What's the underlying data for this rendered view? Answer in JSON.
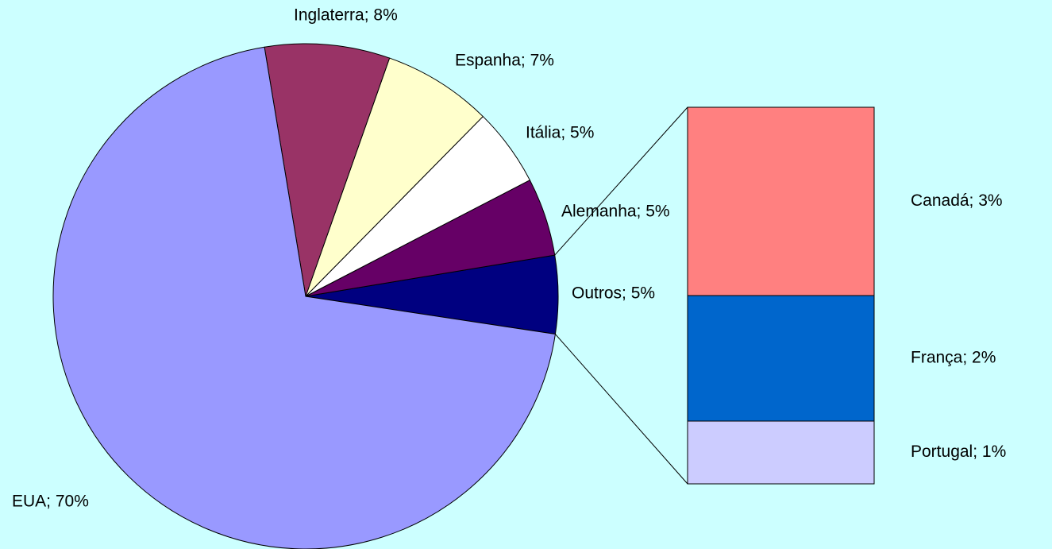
{
  "chart_data": {
    "type": "pie",
    "values": [
      5,
      5,
      5,
      7,
      8,
      70
    ],
    "value_labels": [
      "Outros; 5%",
      "Alemanha; 5%",
      "Itália; 5%",
      "Espanha; 7%",
      "Inglaterra; 8%",
      "EUA; 70%"
    ],
    "colors": [
      "#000080",
      "#660066",
      "#ffffff",
      "#ffffcc",
      "#993366",
      "#9999ff"
    ],
    "bar": {
      "values": [
        3,
        2,
        1
      ],
      "value_labels": [
        "Canadá; 3%",
        "França; 2%",
        "Portugal; 1%"
      ],
      "colors": [
        "#ff8080",
        "#0066cc",
        "#ccccff"
      ]
    }
  }
}
